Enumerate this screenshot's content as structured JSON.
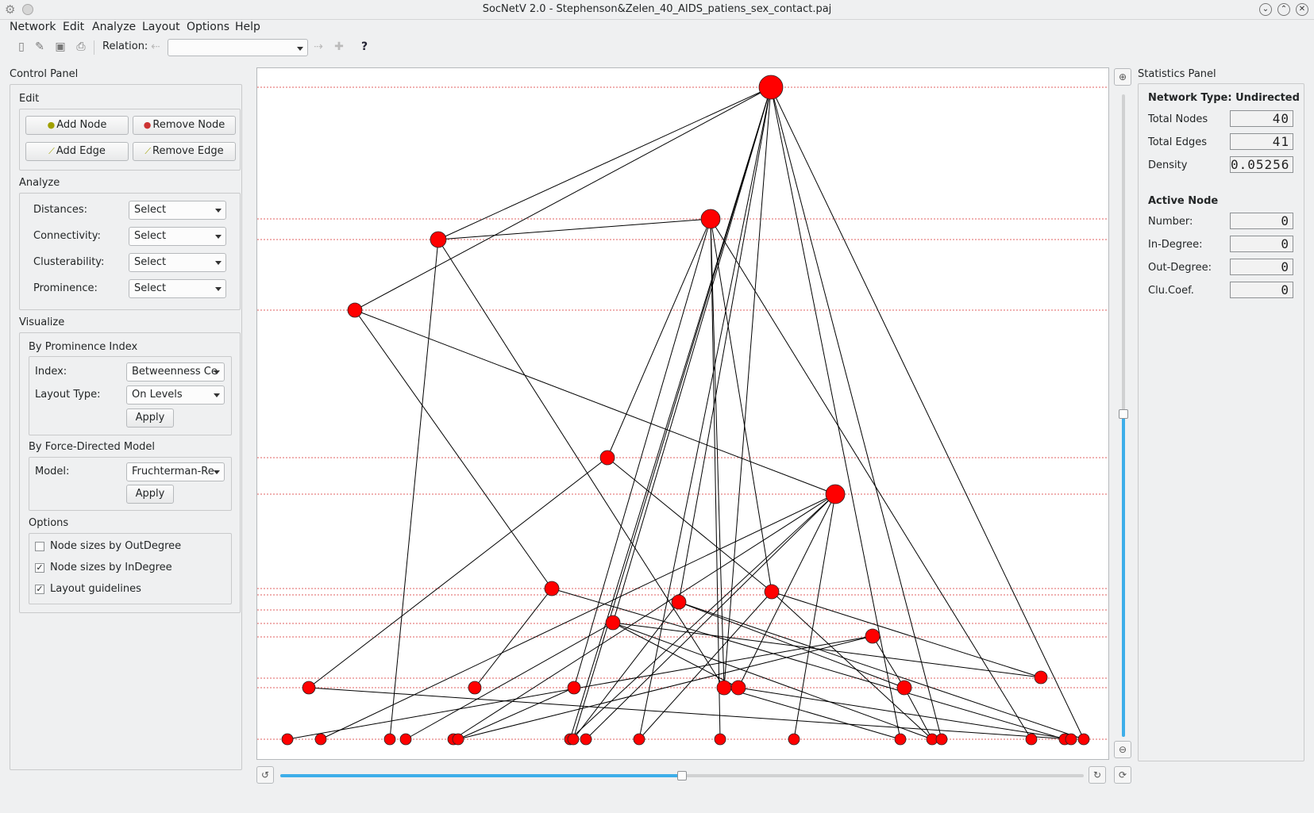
{
  "window": {
    "title": "SocNetV 2.0 - Stephenson&Zelen_40_AIDS_patiens_sex_contact.paj"
  },
  "menubar": {
    "items": [
      {
        "label": "Network"
      },
      {
        "label": "Edit"
      },
      {
        "label": "Analyze"
      },
      {
        "label": "Layout"
      },
      {
        "label": "Options"
      },
      {
        "label": "Help"
      }
    ]
  },
  "toolbar": {
    "relation_label": "Relation:",
    "relation_value": ""
  },
  "control_panel": {
    "title": "Control Panel",
    "edit": {
      "title": "Edit",
      "add_node": "Add Node",
      "remove_node": "Remove Node",
      "add_edge": "Add Edge",
      "remove_edge": "Remove Edge"
    },
    "analyze": {
      "title": "Analyze",
      "rows": [
        {
          "label": "Distances:",
          "value": "Select"
        },
        {
          "label": "Connectivity:",
          "value": "Select"
        },
        {
          "label": "Clusterability:",
          "value": "Select"
        },
        {
          "label": "Prominence:",
          "value": "Select"
        }
      ]
    },
    "visualize": {
      "title": "Visualize",
      "by_prominence": {
        "title": "By Prominence Index",
        "index_label": "Index:",
        "index_value": "Betweenness Ce",
        "layout_type_label": "Layout Type:",
        "layout_type_value": "On Levels",
        "apply": "Apply"
      },
      "by_force": {
        "title": "By Force-Directed Model",
        "model_label": "Model:",
        "model_value": "Fruchterman-Re",
        "apply": "Apply"
      }
    },
    "options": {
      "title": "Options",
      "items": [
        {
          "label": "Node sizes by OutDegree",
          "checked": false
        },
        {
          "label": "Node sizes by InDegree",
          "checked": true
        },
        {
          "label": "Layout guidelines",
          "checked": true
        }
      ]
    }
  },
  "statistics_panel": {
    "title": "Statistics Panel",
    "network_type": "Network Type: Undirected",
    "total_nodes_label": "Total Nodes",
    "total_nodes": "40",
    "total_edges_label": "Total Edges",
    "total_edges": "41",
    "density_label": "Density",
    "density": "0.05256",
    "active_node_title": "Active Node",
    "number_label": "Number:",
    "number": "0",
    "in_degree_label": "In-Degree:",
    "in_degree": "0",
    "out_degree_label": "Out-Degree:",
    "out_degree": "0",
    "clu_coef_label": "Clu.Coef.",
    "clu_coef": "0"
  },
  "graph": {
    "node_color": "#ff0000",
    "guideline_color": "#e06060",
    "zoom_level_fraction": 0.5,
    "rotation_fraction": 0.5
  }
}
